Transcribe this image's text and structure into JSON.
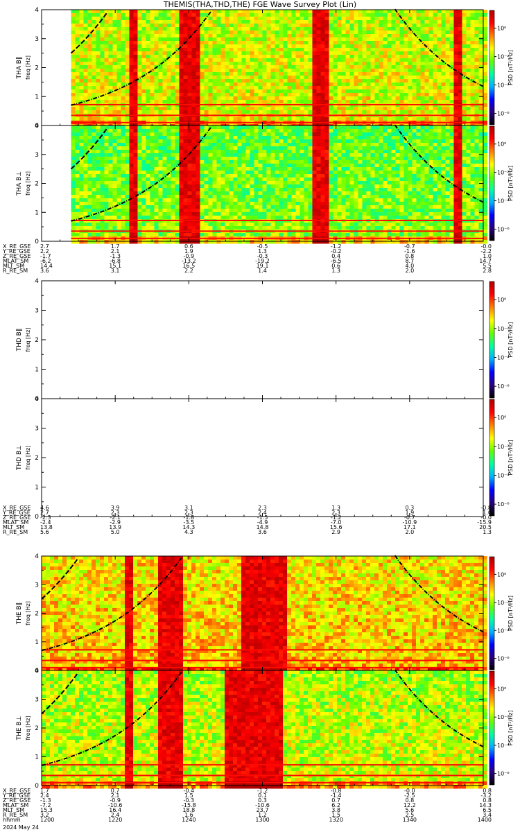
{
  "title": "THEMIS(THA,THD,THE) FGE Wave Survey Plot (Lin)",
  "date_label": "2024 May 24",
  "ytick_labels": [
    "0",
    "1",
    "2",
    "3",
    "4"
  ],
  "colorbar_label": "PSD [nT²/Hz]",
  "colorbar_ticks": [
    "10⁰",
    "10⁻²",
    "10⁻⁴",
    "10⁻⁶"
  ],
  "colorbar_ticks_bottom_panel": [
    "10⁰",
    "10⁻²",
    "10⁻⁴",
    "10⁻⁶"
  ],
  "panels": [
    {
      "probe": "THA",
      "label": "THA B‖",
      "ylabel": "freq [Hz]",
      "has_data": true
    },
    {
      "probe": "THA",
      "label": "THA B⊥",
      "ylabel": "freq [Hz]",
      "has_data": true
    },
    {
      "probe": "THD",
      "label": "THD B‖",
      "ylabel": "freq [Hz]",
      "has_data": false
    },
    {
      "probe": "THD",
      "label": "THD B⊥",
      "ylabel": "freq [Hz]",
      "has_data": false
    },
    {
      "probe": "THE",
      "label": "THE B‖",
      "ylabel": "freq [Hz]",
      "has_data": true
    },
    {
      "probe": "THE",
      "label": "THE B⊥",
      "ylabel": "freq [Hz]",
      "has_data": true
    }
  ],
  "ephemeris": [
    {
      "probe": "THA",
      "names": [
        "X_RE_GSE",
        "Y_RE_GSE",
        "Z_RE_GSE",
        "MLAT_SM",
        "MLT_SM",
        "R_RE_SM"
      ],
      "rows": [
        [
          "2.7",
          "1.7",
          "0.6",
          "-0.5",
          "-1.2",
          "-0.7",
          "-0.0"
        ],
        [
          "2.2",
          "2.1",
          "1.9",
          "1.3",
          "-0.2",
          "-1.6",
          "-2.2"
        ],
        [
          "-1.7",
          "-1.3",
          "-0.9",
          "-0.3",
          "0.4",
          "0.8",
          "1.0"
        ],
        [
          "-6.2",
          "-6.8",
          "-13.2",
          "-19.2",
          "-6.5",
          "8.7",
          "14.7"
        ],
        [
          "14.4",
          "15.1",
          "16.5",
          "19.1",
          "0.6",
          "4.0",
          "5.5"
        ],
        [
          "3.6",
          "3.1",
          "2.2",
          "1.4",
          "1.3",
          "2.0",
          "2.8"
        ]
      ]
    },
    {
      "probe": "THD",
      "names": [
        "X_RE_GSE",
        "Y_RE_GSE",
        "Z_RE_GSE",
        "MLAT_SM",
        "MLT_SM",
        "R_RE_SM"
      ],
      "rows": [
        [
          "4.6",
          "3.9",
          "3.1",
          "2.3",
          "1.3",
          "0.3",
          "-0.8"
        ],
        [
          "2.7",
          "2.3",
          "2.3",
          "2.4",
          "2.3",
          "1.9",
          "1.0"
        ],
        [
          "-2.3",
          "-2.1",
          "-1.8",
          "-1.5",
          "-1.2",
          "-0.7",
          "-0.0"
        ],
        [
          "-2.4",
          "-2.9",
          "-3.5",
          "-4.9",
          "-7.0",
          "-10.9",
          "-15.9"
        ],
        [
          "13.8",
          "13.9",
          "14.3",
          "14.8",
          "15.6",
          "17.1",
          "20.5"
        ],
        [
          "5.6",
          "5.0",
          "4.3",
          "3.6",
          "2.9",
          "2.0",
          "1.3"
        ]
      ]
    },
    {
      "probe": "THE",
      "names": [
        "X_RE_GSE",
        "Y_RE_GSE",
        "Z_RE_GSE",
        "MLAT_SM",
        "MLT_SM",
        "R_RE_SM",
        "hhmm"
      ],
      "rows": [
        [
          "1.7",
          "0.7",
          "-0.4",
          "-1.2",
          "-0.8",
          "-0.0",
          "0.8"
        ],
        [
          "2.4",
          "2.1",
          "1.5",
          "0.1",
          "-1.4",
          "-2.5",
          "-3.2"
        ],
        [
          "-1.3",
          "-0.9",
          "-0.3",
          "0.3",
          "0.7",
          "0.8",
          "0.8"
        ],
        [
          "-7.2",
          "-10.6",
          "-15.8",
          "-10.6",
          "6.2",
          "12.2",
          "14.3"
        ],
        [
          "15.3",
          "16.4",
          "18.8",
          "23.7",
          "3.8",
          "5.6",
          "6.5"
        ],
        [
          "3.2",
          "2.4",
          "1.6",
          "1.2",
          "1.5",
          "2.5",
          "3.4"
        ],
        [
          "1200",
          "1220",
          "1240",
          "1300",
          "1320",
          "1340",
          "1400"
        ]
      ]
    }
  ],
  "chart_data": {
    "type": "heatmap",
    "title": "THEMIS(THA,THD,THE) FGE Wave Survey Plot (Lin)",
    "xlabel": "hhmm",
    "x_ticks": [
      "1200",
      "1220",
      "1240",
      "1300",
      "1320",
      "1340",
      "1400"
    ],
    "ylabel": "freq [Hz]",
    "ylim": [
      0,
      4
    ],
    "zlabel": "PSD [nT²/Hz]",
    "zscale": "log",
    "date": "2024 May 24",
    "colorscale": [
      "#000000",
      "#2a0080",
      "#0000ff",
      "#00b0ff",
      "#00ffa0",
      "#60ff00",
      "#ffff00",
      "#ff8000",
      "#ff0000",
      "#b00000"
    ],
    "series": [
      {
        "name": "THA B‖",
        "data": "spectrogram",
        "data_start_hhmm": "1208",
        "high_power_bands_hhmm": [
          [
            "1224",
            "1225"
          ],
          [
            "1238",
            "1243"
          ],
          [
            "1314",
            "1317"
          ],
          [
            "1353",
            "1354"
          ]
        ]
      },
      {
        "name": "THA B⊥",
        "data": "spectrogram",
        "data_start_hhmm": "1208",
        "high_power_bands_hhmm": [
          [
            "1224",
            "1225"
          ],
          [
            "1238",
            "1243"
          ],
          [
            "1314",
            "1317"
          ],
          [
            "1353",
            "1354"
          ]
        ]
      },
      {
        "name": "THD B‖",
        "data": "none"
      },
      {
        "name": "THD B⊥",
        "data": "none"
      },
      {
        "name": "THE B‖",
        "data": "spectrogram",
        "data_start_hhmm": "1200",
        "high_power_bands_hhmm": [
          [
            "1223",
            "1224"
          ],
          [
            "1232",
            "1238"
          ],
          [
            "1255",
            "1266"
          ],
          [
            "1303",
            "1305"
          ]
        ]
      },
      {
        "name": "THE B⊥",
        "data": "spectrogram",
        "data_start_hhmm": "1200",
        "high_power_bands_hhmm": [
          [
            "1223",
            "1224"
          ],
          [
            "1232",
            "1238"
          ],
          [
            "1250",
            "1260"
          ],
          [
            "1300",
            "1305"
          ]
        ]
      }
    ]
  }
}
